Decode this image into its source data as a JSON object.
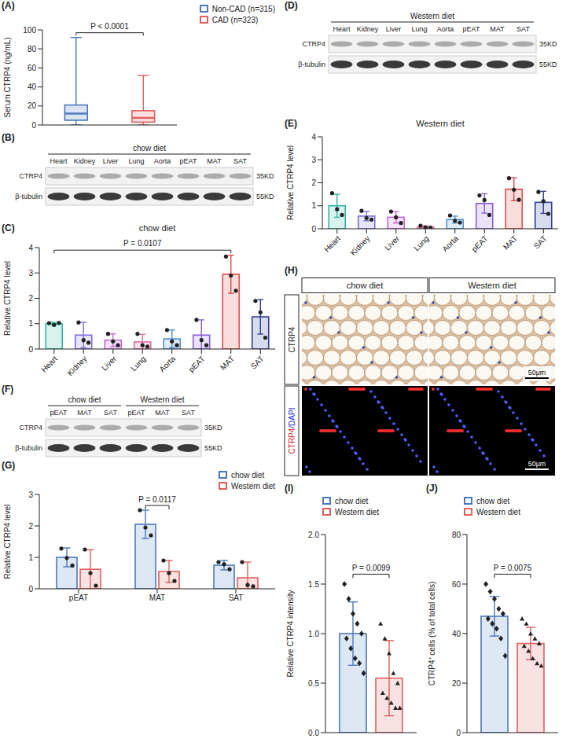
{
  "chart_data": [
    {
      "panel": "(A)",
      "type": "box",
      "ylabel": "Serum CTRP4 (ng/mL)",
      "ylim": [
        0,
        100
      ],
      "yticks": [
        0,
        20,
        40,
        60,
        80,
        100
      ],
      "tick_labels": "y",
      "legend": "top right",
      "series": [
        {
          "name": "Non-CAD (n=315)",
          "color": "#4a78c0",
          "min": 0,
          "q1": 5,
          "median": 12,
          "q3": 21,
          "max": 92
        },
        {
          "name": "CAD (n=323)",
          "color": "#e0605e",
          "min": 0,
          "q1": 3,
          "median": 7.5,
          "q3": 15,
          "max": 52
        }
      ],
      "annotations": [
        {
          "text": "P < 0.0001",
          "from": "Non-CAD (n=315)",
          "to": "CAD (n=323)"
        }
      ]
    },
    {
      "panel": "(C)",
      "type": "bar",
      "title": "chow diet",
      "ylabel": "Relative CTRP4 level",
      "categories": [
        "Heart",
        "Kidney",
        "Liver",
        "Lung",
        "Aorta",
        "pEAT",
        "MAT",
        "SAT"
      ],
      "values": [
        1.0,
        0.55,
        0.35,
        0.28,
        0.4,
        0.55,
        2.95,
        1.27
      ],
      "errors": [
        0.05,
        0.5,
        0.25,
        0.3,
        0.35,
        0.6,
        0.75,
        0.68
      ],
      "points": [
        [
          1.02,
          0.95,
          1.03
        ],
        [
          1.05,
          0.35,
          0.25
        ],
        [
          0.6,
          0.3,
          0.15
        ],
        [
          0.6,
          0.15,
          0.1
        ],
        [
          0.75,
          0.3,
          0.15
        ],
        [
          1.15,
          0.35,
          0.15
        ],
        [
          3.65,
          2.9,
          2.3
        ],
        [
          1.9,
          1.45,
          0.45
        ]
      ],
      "colors": [
        "#2fb5a3",
        "#7b6fe0",
        "#c765d8",
        "#e06aa3",
        "#4f8fd8",
        "#8b5fd6",
        "#e24a4a",
        "#2e3f95"
      ],
      "marker": "circle",
      "ylim": [
        0,
        4
      ],
      "yticks": [
        0,
        1,
        2,
        3,
        4
      ],
      "annotations": [
        {
          "text": "P = 0.0107",
          "from": "Heart",
          "to": "MAT"
        }
      ]
    },
    {
      "panel": "(E)",
      "type": "bar",
      "title": "Western diet",
      "ylabel": "Relative CTRP4 level",
      "categories": [
        "Heart",
        "Kidney",
        "Liver",
        "Lung",
        "Aorta",
        "pEAT",
        "MAT",
        "SAT"
      ],
      "values": [
        1.0,
        0.55,
        0.5,
        0.08,
        0.4,
        1.1,
        1.72,
        1.15
      ],
      "errors": [
        0.5,
        0.2,
        0.25,
        0.05,
        0.15,
        0.42,
        0.5,
        0.48
      ],
      "points": [
        [
          1.55,
          0.85,
          0.6
        ],
        [
          0.78,
          0.47,
          0.4
        ],
        [
          0.75,
          0.5,
          0.25
        ],
        [
          0.13,
          0.06,
          0.05
        ],
        [
          0.58,
          0.35,
          0.27
        ],
        [
          1.45,
          1.25,
          0.6
        ],
        [
          2.2,
          1.7,
          1.26
        ],
        [
          1.6,
          1.2,
          0.65
        ]
      ],
      "colors": [
        "#2fb5a3",
        "#7b6fe0",
        "#c765d8",
        "#e06aa3",
        "#4f8fd8",
        "#8b5fd6",
        "#e24a4a",
        "#2e3f95"
      ],
      "marker": "circle",
      "ylim": [
        0,
        4
      ],
      "yticks": [
        0,
        1,
        2,
        3,
        4
      ]
    },
    {
      "panel": "(G)",
      "type": "bar",
      "ylabel": "Relative CTRP4 level",
      "categories": [
        "pEAT",
        "MAT",
        "SAT"
      ],
      "legend": "top right",
      "series": [
        {
          "name": "chow diet",
          "color": "#4a78c0",
          "values": [
            1.0,
            2.05,
            0.75
          ],
          "errors": [
            0.3,
            0.45,
            0.15
          ],
          "points": [
            [
              1.28,
              0.98,
              0.74
            ],
            [
              2.5,
              1.95,
              1.7
            ],
            [
              0.85,
              0.78,
              0.62
            ]
          ],
          "marker": "circle"
        },
        {
          "name": "Western diet",
          "color": "#e0605e",
          "values": [
            0.62,
            0.55,
            0.35
          ],
          "errors": [
            0.62,
            0.35,
            0.5
          ],
          "points": [
            [
              1.25,
              0.5,
              0.1
            ],
            [
              0.9,
              0.5,
              0.25
            ],
            [
              0.85,
              0.12,
              0.08
            ]
          ],
          "marker": "circle"
        }
      ],
      "ylim": [
        0,
        3
      ],
      "yticks": [
        0,
        1,
        2,
        3
      ],
      "annotations": [
        {
          "text": "P = 0.0117",
          "category": "MAT",
          "from": "chow diet",
          "to": "Western diet"
        }
      ]
    },
    {
      "panel": "(I)",
      "type": "bar",
      "ylabel": "Relative CTRP4 intensity",
      "categories": [
        null
      ],
      "tick_labels": "y",
      "legend": "top",
      "series": [
        {
          "name": "chow diet",
          "color": "#4a78c0",
          "values": [
            1.0
          ],
          "errors": [
            0.32
          ],
          "points": [
            [
              1.5,
              1.35,
              1.2,
              1.1,
              1.0,
              0.95,
              0.85,
              0.75,
              0.7,
              0.6
            ]
          ],
          "marker": "diamond"
        },
        {
          "name": "Western diet",
          "color": "#e0605e",
          "values": [
            0.55
          ],
          "errors": [
            0.38
          ],
          "points": [
            [
              1.1,
              0.95,
              0.8,
              0.6,
              0.5,
              0.4,
              0.35,
              0.3,
              0.25,
              0.25
            ]
          ],
          "marker": "triangle"
        }
      ],
      "ylim": [
        0,
        2
      ],
      "yticks": [
        {
          "value": 0,
          "label": "0.0"
        },
        {
          "value": 0.5,
          "label": "0.5"
        },
        {
          "value": 1,
          "label": "1.0"
        },
        {
          "value": 1.5,
          "label": "1.5"
        },
        {
          "value": 2,
          "label": "2.0"
        }
      ],
      "annotations": [
        {
          "text": "P = 0.0099",
          "from": "chow diet",
          "to": "Western diet"
        }
      ]
    },
    {
      "panel": "(J)",
      "type": "bar",
      "ylabel": "CTRP4⁺ cells (% of total cells)",
      "categories": [
        null
      ],
      "tick_labels": "y",
      "legend": "top",
      "series": [
        {
          "name": "chow diet",
          "color": "#4a78c0",
          "values": [
            47
          ],
          "errors": [
            8
          ],
          "points": [
            [
              60,
              57,
              54,
              50,
              48,
              46,
              44,
              42,
              38,
              31
            ]
          ],
          "marker": "diamond"
        },
        {
          "name": "Western diet",
          "color": "#e0605e",
          "values": [
            36
          ],
          "errors": [
            6.5
          ],
          "points": [
            [
              46,
              44,
              40,
              38,
              36,
              35,
              33,
              30,
              28,
              27
            ]
          ],
          "marker": "triangle"
        }
      ],
      "ylim": [
        0,
        80
      ],
      "yticks": [
        0,
        20,
        40,
        60,
        80
      ],
      "annotations": [
        {
          "text": "P = 0.0075",
          "from": "chow diet",
          "to": "Western diet"
        }
      ]
    }
  ],
  "blots": [
    {
      "panel": "(B)",
      "groups": [
        {
          "title": "chow diet",
          "lanes": [
            "Heart",
            "Kidney",
            "Liver",
            "Lung",
            "Aorta",
            "pEAT",
            "MAT",
            "SAT"
          ]
        }
      ],
      "rows": [
        {
          "label": "CTRP4",
          "size": "35KD"
        },
        {
          "label": "β-tubulin",
          "size": "55KD"
        }
      ]
    },
    {
      "panel": "(D)",
      "groups": [
        {
          "title": "Western diet",
          "lanes": [
            "Heart",
            "Kidney",
            "Liver",
            "Lung",
            "Aorta",
            "pEAT",
            "MAT",
            "SAT"
          ]
        }
      ],
      "rows": [
        {
          "label": "CTRP4",
          "size": "35KD"
        },
        {
          "label": "β-tubulin",
          "size": "55KD"
        }
      ]
    },
    {
      "panel": "(F)",
      "groups": [
        {
          "title": "chow diet",
          "lanes": [
            "pEAT",
            "MAT",
            "SAT"
          ]
        },
        {
          "title": "Western diet",
          "lanes": [
            "pEAT",
            "MAT",
            "SAT"
          ]
        }
      ],
      "rows": [
        {
          "label": "CTRP4",
          "size": "35KD"
        },
        {
          "label": "β-tubulin",
          "size": "55KD"
        }
      ]
    }
  ],
  "images": {
    "panel": "(H)",
    "columns": [
      "chow diet",
      "Western diet"
    ],
    "rows": [
      "CTRP4",
      "CTRP4/DAPI"
    ],
    "scale_bar": "50μm"
  }
}
